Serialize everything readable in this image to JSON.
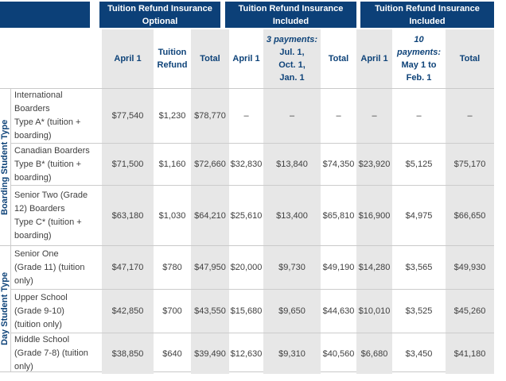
{
  "colors": {
    "header_bg": "#0c4078",
    "header_text": "#ffffff",
    "accent_text": "#0e4379",
    "shaded_column": "#e7e7e7",
    "body_text": "#3f3f3f",
    "grid_line": "#cccccc"
  },
  "header_groups": [
    {
      "line1": "Tuition Refund Insurance",
      "line2": "Optional"
    },
    {
      "line1": "Tuition Refund Insurance",
      "line2": "Included"
    },
    {
      "line1": "Tuition Refund Insurance",
      "line2": "Included"
    }
  ],
  "subheader": {
    "columns": [
      {
        "text": "April 1"
      },
      {
        "text": "Tuition\nRefund"
      },
      {
        "text": "Total"
      },
      {
        "text": "April 1"
      },
      {
        "italic": "3 payments:",
        "text": "Jul. 1,\nOct. 1,\nJan. 1"
      },
      {
        "text": "Total"
      },
      {
        "text": "April 1"
      },
      {
        "italic": "10\npayments:",
        "text": "May 1 to\nFeb. 1"
      },
      {
        "text": "Total"
      }
    ]
  },
  "row_groups": [
    {
      "label": "Boarding Student Type",
      "rows": [
        {
          "header": "International\nBoarders\nType A* (tuition +\nboarding)",
          "values": [
            "$77,540",
            "$1,230",
            "$78,770",
            "–",
            "–",
            "–",
            "–",
            "–",
            "–"
          ]
        },
        {
          "header": "Canadian Boarders\nType B* (tuition +\nboarding)",
          "values": [
            "$71,500",
            "$1,160",
            "$72,660",
            "$32,830",
            "$13,840",
            "$74,350",
            "$23,920",
            "$5,125",
            "$75,170"
          ]
        },
        {
          "header": "Senior Two (Grade\n12) Boarders\nType C* (tuition +\nboarding)",
          "values": [
            "$63,180",
            "$1,030",
            "$64,210",
            "$25,610",
            "$13,400",
            "$65,810",
            "$16,900",
            "$4,975",
            "$66,650"
          ]
        }
      ]
    },
    {
      "label": "Day Student Type",
      "rows": [
        {
          "header": "Senior One\n(Grade 11) (tuition\nonly)",
          "values": [
            "$47,170",
            "$780",
            "$47,950",
            "$20,000",
            "$9,730",
            "$49,190",
            "$14,280",
            "$3,565",
            "$49,930"
          ]
        },
        {
          "header": "Upper School\n(Grade 9-10)\n(tuition only)",
          "values": [
            "$42,850",
            "$700",
            "$43,550",
            "$15,680",
            "$9,650",
            "$44,630",
            "$10,010",
            "$3,525",
            "$45,260"
          ]
        },
        {
          "header": "Middle School\n(Grade 7-8) (tuition\nonly)",
          "values": [
            "$38,850",
            "$640",
            "$39,490",
            "$12,630",
            "$9,310",
            "$40,560",
            "$6,680",
            "$3,450",
            "$41,180"
          ]
        }
      ]
    }
  ],
  "chart_data": {
    "type": "table",
    "title": "",
    "column_groups": [
      "Tuition Refund Insurance Optional",
      "Tuition Refund Insurance Included (3 payments: Jul. 1, Oct. 1, Jan. 1)",
      "Tuition Refund Insurance Included (10 payments: May 1 to Feb. 1)"
    ],
    "columns": [
      "April 1",
      "Tuition Refund",
      "Total",
      "April 1",
      "3 payments: Jul. 1, Oct. 1, Jan. 1",
      "Total",
      "April 1",
      "10 payments: May 1 to Feb. 1",
      "Total"
    ],
    "row_categories": [
      "Boarding Student Type",
      "Boarding Student Type",
      "Boarding Student Type",
      "Day Student Type",
      "Day Student Type",
      "Day Student Type"
    ],
    "row_labels": [
      "International Boarders Type A* (tuition + boarding)",
      "Canadian Boarders Type B* (tuition + boarding)",
      "Senior Two (Grade 12) Boarders Type C* (tuition + boarding)",
      "Senior One (Grade 11) (tuition only)",
      "Upper School (Grade 9-10) (tuition only)",
      "Middle School (Grade 7-8) (tuition only)"
    ],
    "values": [
      [
        77540,
        1230,
        78770,
        null,
        null,
        null,
        null,
        null,
        null
      ],
      [
        71500,
        1160,
        72660,
        32830,
        13840,
        74350,
        23920,
        5125,
        75170
      ],
      [
        63180,
        1030,
        64210,
        25610,
        13400,
        65810,
        16900,
        4975,
        66650
      ],
      [
        47170,
        780,
        47950,
        20000,
        9730,
        49190,
        14280,
        3565,
        49930
      ],
      [
        42850,
        700,
        43550,
        15680,
        9650,
        44630,
        10010,
        3525,
        45260
      ],
      [
        38850,
        640,
        39490,
        12630,
        9310,
        40560,
        6680,
        3450,
        41180
      ]
    ]
  }
}
